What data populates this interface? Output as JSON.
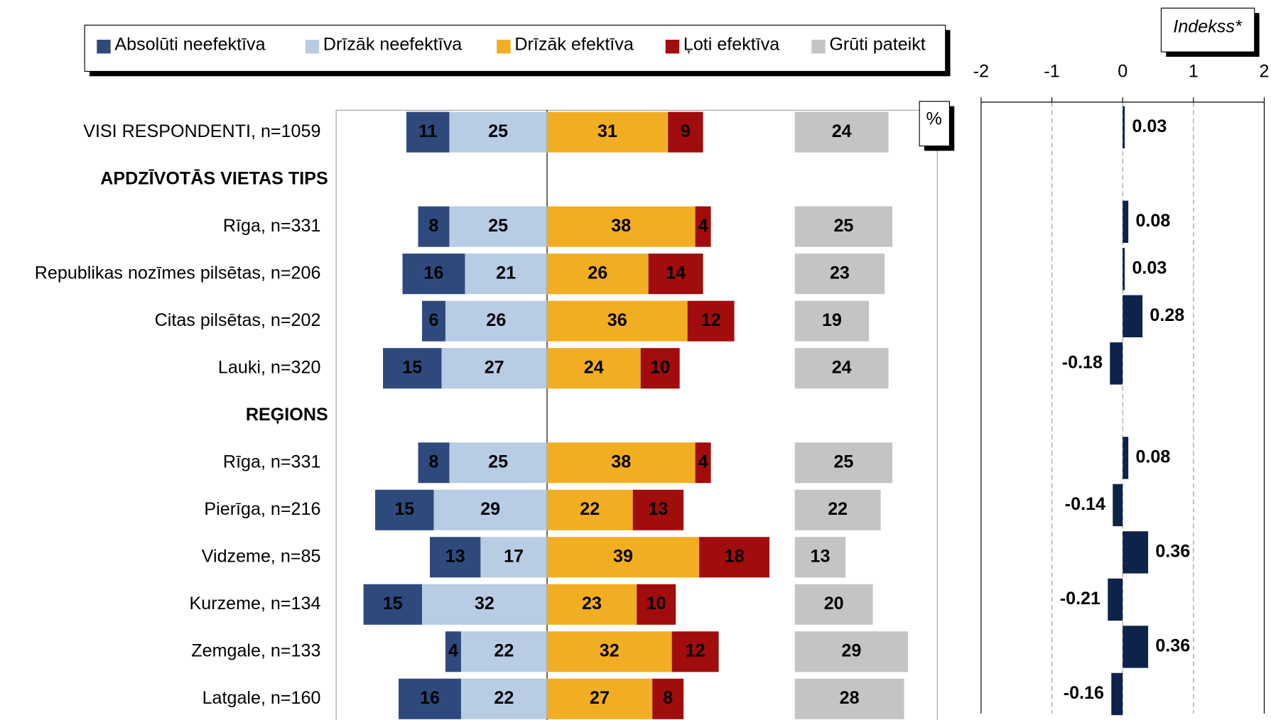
{
  "chart_data": [
    {
      "type": "diverging_bar",
      "categories": [
        "VISI RESPONDENTI, n=1059",
        "APDZĪVOTĀS VIETAS TIPS",
        "Rīga, n=331",
        "Republikas nozīmes pilsētas, n=206",
        "Citas pilsētas, n=202",
        "Lauki, n=320",
        "REĢIONS",
        "Rīga, n=331",
        "Pierīga, n=216",
        "Vidzeme, n=85",
        "Kurzeme, n=134",
        "Zemgale, n=133",
        "Latgale, n=160"
      ],
      "unit_label": "%",
      "xlim": [
        -54,
        100
      ],
      "series": [
        {
          "name": "Absolūti neefektīva",
          "color": "#2e4a7d",
          "values": [
            11,
            null,
            8,
            16,
            6,
            15,
            null,
            8,
            15,
            13,
            15,
            4,
            16
          ]
        },
        {
          "name": "Drīzāk neefektīva",
          "color": "#b8cce4",
          "values": [
            25,
            null,
            25,
            21,
            26,
            27,
            null,
            25,
            29,
            17,
            32,
            22,
            22
          ]
        },
        {
          "name": "Drīzāk efektīva",
          "color": "#f2ae22",
          "values": [
            31,
            null,
            38,
            26,
            36,
            24,
            null,
            38,
            22,
            39,
            23,
            32,
            27
          ]
        },
        {
          "name": "Ļoti efektīva",
          "color": "#a10c0c",
          "values": [
            9,
            null,
            4,
            14,
            12,
            10,
            null,
            4,
            13,
            18,
            10,
            12,
            8
          ]
        },
        {
          "name": "Grūti pateikt",
          "color": "#c4c4c4",
          "values": [
            24,
            null,
            25,
            23,
            19,
            24,
            null,
            25,
            22,
            13,
            20,
            29,
            28
          ]
        }
      ]
    },
    {
      "type": "bar_h",
      "title": "Indekss*",
      "color": "#0e2349",
      "values": [
        0.03,
        null,
        0.08,
        0.03,
        0.28,
        -0.18,
        null,
        0.08,
        -0.14,
        0.36,
        -0.21,
        0.36,
        -0.16
      ],
      "xlim": [
        -2,
        2
      ],
      "xticks": [
        -2,
        -1,
        0,
        1,
        2
      ],
      "grid": true
    }
  ]
}
